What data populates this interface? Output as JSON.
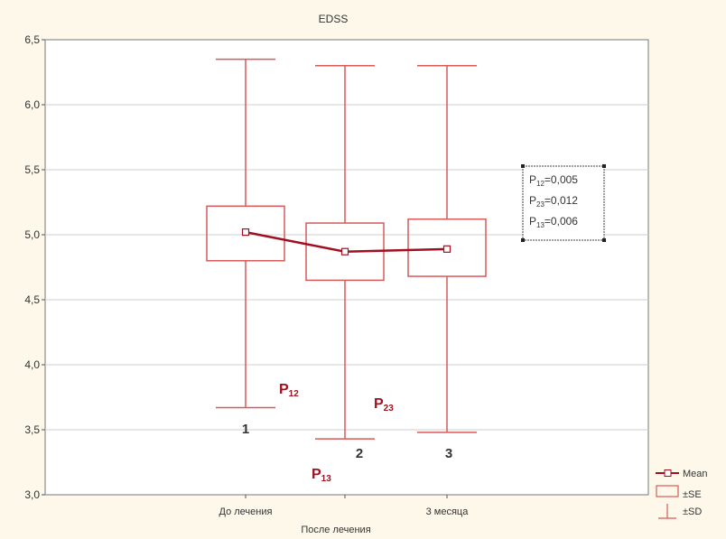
{
  "chart_data": {
    "type": "box",
    "title": "EDSS",
    "xlabel": "После лечения",
    "ylabel": "",
    "ylim": [
      3.0,
      6.5
    ],
    "yticks": [
      "3,0",
      "3,5",
      "4,0",
      "4,5",
      "5,0",
      "5,5",
      "6,0",
      "6,5"
    ],
    "ytick_values": [
      3.0,
      3.5,
      4.0,
      4.5,
      5.0,
      5.5,
      6.0,
      6.5
    ],
    "grid": true,
    "categories": [
      "До лечения",
      "",
      "3 месяца"
    ],
    "group_numbers": [
      "1",
      "2",
      "3"
    ],
    "series": [
      {
        "category_index": 0,
        "mean": 5.02,
        "se_low": 4.8,
        "se_high": 5.22,
        "sd_low": 3.67,
        "sd_high": 6.35
      },
      {
        "category_index": 1,
        "mean": 4.87,
        "se_low": 4.65,
        "se_high": 5.09,
        "sd_low": 3.43,
        "sd_high": 6.3
      },
      {
        "category_index": 2,
        "mean": 4.89,
        "se_low": 4.68,
        "se_high": 5.12,
        "sd_low": 3.48,
        "sd_high": 6.3
      }
    ],
    "legend": {
      "placement": "bottom-right",
      "items": [
        "Mean",
        "±SE",
        "±SD"
      ]
    },
    "annotation_box": {
      "lines": [
        {
          "p": "P",
          "sub": "12",
          "value": "=0,005"
        },
        {
          "p": "P",
          "sub": "23",
          "value": "=0,012"
        },
        {
          "p": "P",
          "sub": "13",
          "value": "=0,006"
        }
      ]
    },
    "p_labels": [
      {
        "p": "P",
        "sub": "12"
      },
      {
        "p": "P",
        "sub": "23"
      },
      {
        "p": "P",
        "sub": "13"
      }
    ],
    "colors": {
      "box": "#d65a5a",
      "mean_line": "#a01020",
      "grid": "#cfcfcf",
      "background": "#fdf8e9",
      "plot_bg": "#ffffff"
    }
  }
}
